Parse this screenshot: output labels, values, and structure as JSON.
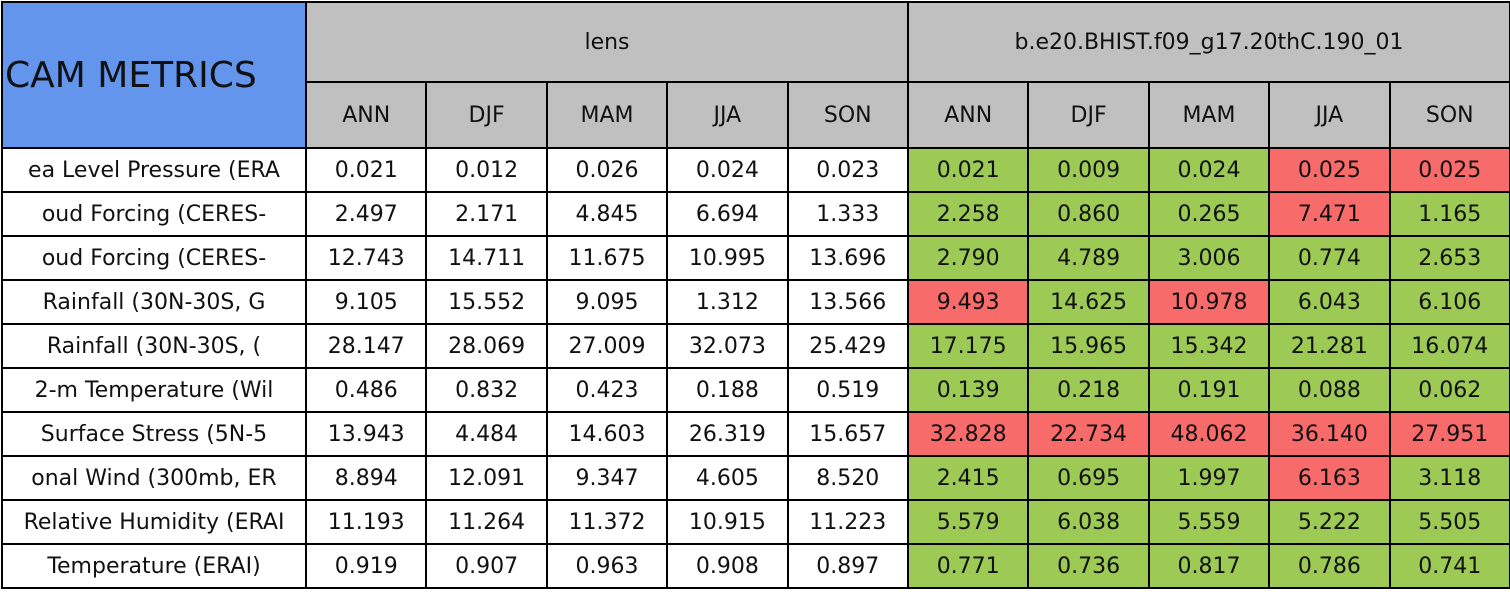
{
  "table": {
    "title": "CAM METRICS",
    "groups": [
      "lens",
      "b.e20.BHIST.f09_g17.20thC.190_01"
    ],
    "seasons": [
      "ANN",
      "DJF",
      "MAM",
      "JJA",
      "SON"
    ],
    "rows": [
      {
        "label": "ea Level Pressure (ERA",
        "lens": [
          "0.021",
          "0.012",
          "0.026",
          "0.024",
          "0.023"
        ],
        "bhist": [
          "0.021",
          "0.009",
          "0.024",
          "0.025",
          "0.025"
        ],
        "colors": [
          "#9dc955",
          "#9dc955",
          "#9dc955",
          "#f86b6b",
          "#f86b6b"
        ]
      },
      {
        "label": "oud Forcing (CERES-",
        "lens": [
          "2.497",
          "2.171",
          "4.845",
          "6.694",
          "1.333"
        ],
        "bhist": [
          "2.258",
          "0.860",
          "0.265",
          "7.471",
          "1.165"
        ],
        "colors": [
          "#9dc955",
          "#9dc955",
          "#9dc955",
          "#f86b6b",
          "#9dc955"
        ]
      },
      {
        "label": "oud Forcing (CERES-",
        "lens": [
          "12.743",
          "14.711",
          "11.675",
          "10.995",
          "13.696"
        ],
        "bhist": [
          "2.790",
          "4.789",
          "3.006",
          "0.774",
          "2.653"
        ],
        "colors": [
          "#9dc955",
          "#9dc955",
          "#9dc955",
          "#9dc955",
          "#9dc955"
        ]
      },
      {
        "label": "Rainfall (30N-30S, G",
        "lens": [
          "9.105",
          "15.552",
          "9.095",
          "1.312",
          "13.566"
        ],
        "bhist": [
          "9.493",
          "14.625",
          "10.978",
          "6.043",
          "6.106"
        ],
        "colors": [
          "#f86b6b",
          "#9dc955",
          "#f86b6b",
          "#9dc955",
          "#9dc955"
        ]
      },
      {
        "label": "Rainfall (30N-30S, (",
        "lens": [
          "28.147",
          "28.069",
          "27.009",
          "32.073",
          "25.429"
        ],
        "bhist": [
          "17.175",
          "15.965",
          "15.342",
          "21.281",
          "16.074"
        ],
        "colors": [
          "#9dc955",
          "#9dc955",
          "#9dc955",
          "#9dc955",
          "#9dc955"
        ]
      },
      {
        "label": "2-m Temperature (Wil",
        "lens": [
          "0.486",
          "0.832",
          "0.423",
          "0.188",
          "0.519"
        ],
        "bhist": [
          "0.139",
          "0.218",
          "0.191",
          "0.088",
          "0.062"
        ],
        "colors": [
          "#9dc955",
          "#9dc955",
          "#9dc955",
          "#9dc955",
          "#9dc955"
        ]
      },
      {
        "label": "Surface Stress (5N-5",
        "lens": [
          "13.943",
          "4.484",
          "14.603",
          "26.319",
          "15.657"
        ],
        "bhist": [
          "32.828",
          "22.734",
          "48.062",
          "36.140",
          "27.951"
        ],
        "colors": [
          "#f86b6b",
          "#f86b6b",
          "#f86b6b",
          "#f86b6b",
          "#f86b6b"
        ]
      },
      {
        "label": "onal Wind (300mb, ER",
        "lens": [
          "8.894",
          "12.091",
          "9.347",
          "4.605",
          "8.520"
        ],
        "bhist": [
          "2.415",
          "0.695",
          "1.997",
          "6.163",
          "3.118"
        ],
        "colors": [
          "#9dc955",
          "#9dc955",
          "#9dc955",
          "#f86b6b",
          "#9dc955"
        ]
      },
      {
        "label": "Relative Humidity (ERAI",
        "lens": [
          "11.193",
          "11.264",
          "11.372",
          "10.915",
          "11.223"
        ],
        "bhist": [
          "5.579",
          "6.038",
          "5.559",
          "5.222",
          "5.505"
        ],
        "colors": [
          "#9dc955",
          "#9dc955",
          "#9dc955",
          "#9dc955",
          "#9dc955"
        ]
      },
      {
        "label": "Temperature (ERAI)",
        "lens": [
          "0.919",
          "0.907",
          "0.963",
          "0.908",
          "0.897"
        ],
        "bhist": [
          "0.771",
          "0.736",
          "0.817",
          "0.786",
          "0.741"
        ],
        "colors": [
          "#9dc955",
          "#9dc955",
          "#9dc955",
          "#9dc955",
          "#9dc955"
        ]
      }
    ]
  }
}
